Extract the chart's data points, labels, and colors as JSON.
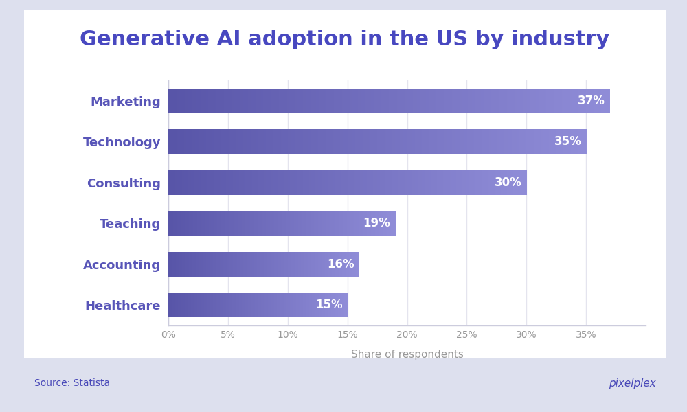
{
  "title": "Generative AI adoption in the US by industry",
  "categories": [
    "Healthcare",
    "Accounting",
    "Teaching",
    "Consulting",
    "Technology",
    "Marketing"
  ],
  "values": [
    15,
    16,
    19,
    30,
    35,
    37
  ],
  "bar_color_dark": "#5855A8",
  "bar_color_light": "#8B88D4",
  "xlabel": "Share of respondents",
  "xlim": [
    0,
    40
  ],
  "xticks": [
    0,
    5,
    10,
    15,
    20,
    25,
    30,
    35
  ],
  "xtick_labels": [
    "0%",
    "5%",
    "10%",
    "15%",
    "20%",
    "25%",
    "30%",
    "35%"
  ],
  "label_color": "#ffffff",
  "category_color": "#5855B8",
  "title_color": "#4848C0",
  "background_outer": "#DDE0EE",
  "background_inner": "#FFFFFF",
  "source_text": "Source: Statista",
  "brand_text": "pixelplex",
  "grid_color": "#E4E4EE",
  "title_fontsize": 22,
  "label_fontsize": 12,
  "category_fontsize": 13,
  "xlabel_fontsize": 11,
  "source_fontsize": 10,
  "bar_height": 0.6
}
